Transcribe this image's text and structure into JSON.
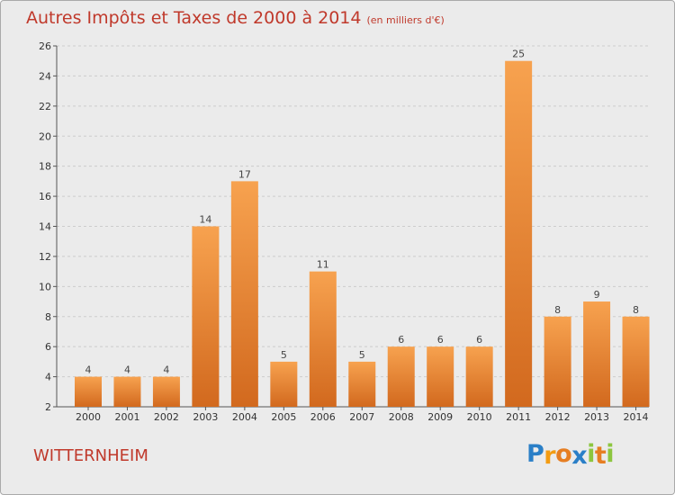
{
  "chart_data": {
    "type": "bar",
    "title": "Autres Impôts et Taxes de 2000 à 2014",
    "subtitle": "(en milliers d'€)",
    "categories": [
      "2000",
      "2001",
      "2002",
      "2003",
      "2004",
      "2005",
      "2006",
      "2007",
      "2008",
      "2009",
      "2010",
      "2011",
      "2012",
      "2013",
      "2014"
    ],
    "values": [
      4,
      4,
      4,
      14,
      17,
      5,
      11,
      5,
      6,
      6,
      6,
      25,
      8,
      9,
      8
    ],
    "ylim": [
      2,
      26
    ],
    "yticks": [
      2,
      4,
      6,
      8,
      10,
      12,
      14,
      16,
      18,
      20,
      22,
      24,
      26
    ],
    "grid": true,
    "bar_color_light": "#f7a24f",
    "bar_color_dark": "#d2691e"
  },
  "place_name": "WITTERNHEIM",
  "logo": {
    "letters": [
      "P",
      "r",
      "o",
      "x",
      "i",
      "t",
      "i"
    ],
    "colors": [
      "#2a7fc7",
      "#f39c12",
      "#e67e22",
      "#2a7fc7",
      "#8dc63f",
      "#e67e22",
      "#8dc63f"
    ]
  }
}
